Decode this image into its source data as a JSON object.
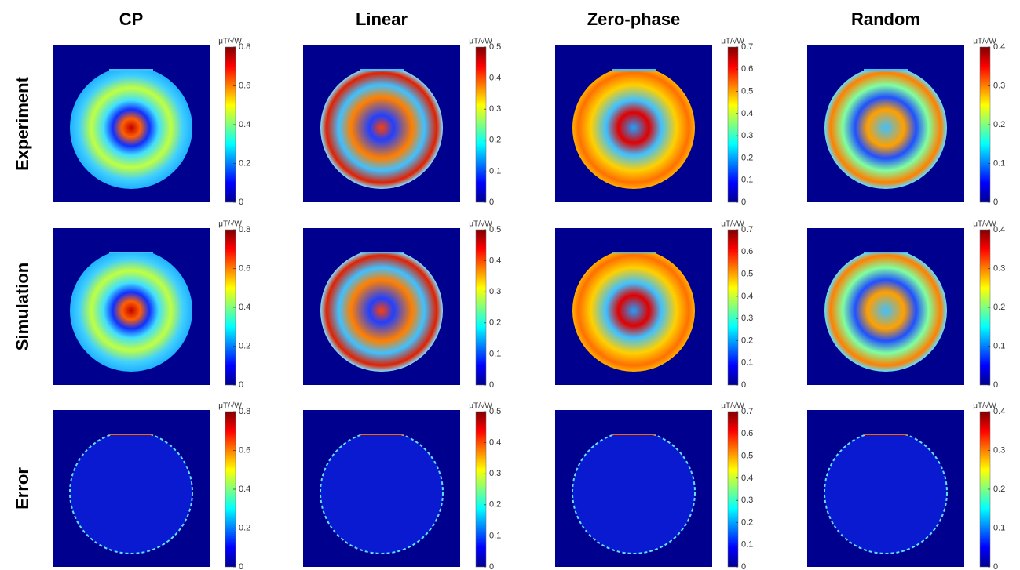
{
  "columns": [
    "CP",
    "Linear",
    "Zero-phase",
    "Random"
  ],
  "rows": [
    "Experiment",
    "Simulation",
    "Error"
  ],
  "colorbar_unit": "μT/√W",
  "colorbars": [
    {
      "lim": [
        0,
        0.8
      ],
      "ticks": [
        0,
        0.2,
        0.4,
        0.6,
        0.8
      ]
    },
    {
      "lim": [
        0,
        0.5
      ],
      "ticks": [
        0,
        0.1,
        0.2,
        0.3,
        0.4,
        0.5
      ]
    },
    {
      "lim": [
        0,
        0.7
      ],
      "ticks": [
        0,
        0.1,
        0.2,
        0.3,
        0.4,
        0.5,
        0.6,
        0.7
      ]
    },
    {
      "lim": [
        0,
        0.4
      ],
      "ticks": [
        0,
        0.1,
        0.2,
        0.3,
        0.4
      ]
    }
  ]
}
